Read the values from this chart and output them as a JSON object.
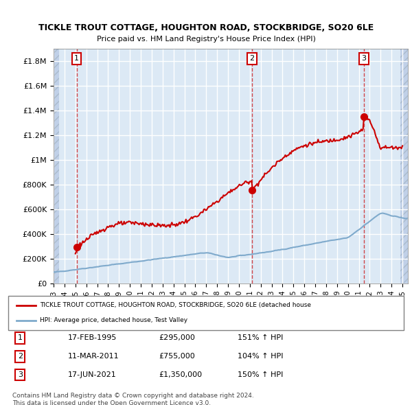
{
  "title1": "TICKLE TROUT COTTAGE, HOUGHTON ROAD, STOCKBRIDGE, SO20 6LE",
  "title2": "Price paid vs. HM Land Registry's House Price Index (HPI)",
  "ylabel": "",
  "background_color": "#dce9f5",
  "hatch_color": "#c0d0e8",
  "grid_color": "#ffffff",
  "property_color": "#cc0000",
  "hpi_color": "#7faacc",
  "sale_dates": [
    1995.12,
    2011.19,
    2021.46
  ],
  "sale_prices": [
    295000,
    755000,
    1350000
  ],
  "sale_labels": [
    "1",
    "2",
    "3"
  ],
  "legend_property": "TICKLE TROUT COTTAGE, HOUGHTON ROAD, STOCKBRIDGE, SO20 6LE (detached house",
  "legend_hpi": "HPI: Average price, detached house, Test Valley",
  "table_rows": [
    [
      "1",
      "17-FEB-1995",
      "£295,000",
      "151% ↑ HPI"
    ],
    [
      "2",
      "11-MAR-2011",
      "£755,000",
      "104% ↑ HPI"
    ],
    [
      "3",
      "17-JUN-2021",
      "£1,350,000",
      "150% ↑ HPI"
    ]
  ],
  "footnote": "Contains HM Land Registry data © Crown copyright and database right 2024.\nThis data is licensed under the Open Government Licence v3.0.",
  "ylim": [
    0,
    1900000
  ],
  "xlim": [
    1993,
    2025.5
  ],
  "yticks": [
    0,
    200000,
    400000,
    600000,
    800000,
    1000000,
    1200000,
    1400000,
    1600000,
    1800000
  ],
  "ytick_labels": [
    "£0",
    "£200K",
    "£400K",
    "£600K",
    "£800K",
    "£1M",
    "£1.2M",
    "£1.4M",
    "£1.6M",
    "£1.8M"
  ]
}
